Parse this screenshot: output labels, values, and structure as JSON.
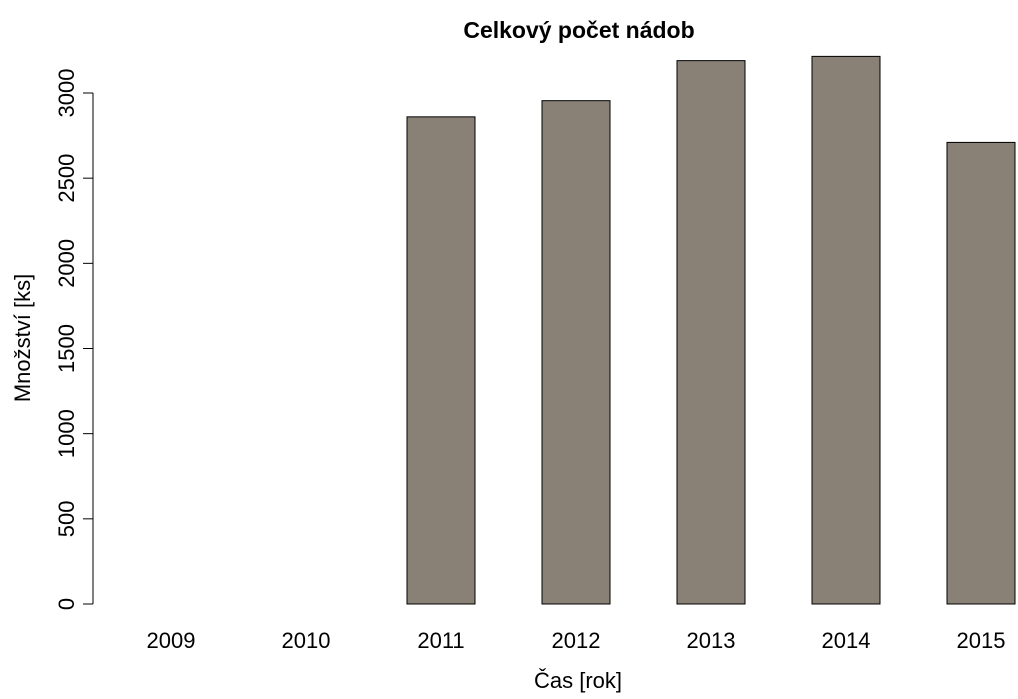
{
  "chart_data": {
    "type": "bar",
    "title": "Celkový počet nádob",
    "xlabel": "Čas [rok]",
    "ylabel": "Množství [ks]",
    "categories": [
      "2009",
      "2010",
      "2011",
      "2012",
      "2013",
      "2014",
      "2015"
    ],
    "values": [
      0,
      0,
      2860,
      2955,
      3190,
      3215,
      2710
    ],
    "ylim": [
      0,
      3220
    ],
    "yticks": [
      0,
      500,
      1000,
      1500,
      2000,
      2500,
      3000
    ],
    "ytick_labels": [
      "0",
      "500",
      "1000",
      "1500",
      "2000",
      "2500",
      "3000"
    ],
    "grid": false,
    "legend": "none",
    "colors": {
      "bar_fill": "#898176",
      "bar_stroke": "#000000",
      "axis": "#000000",
      "background": "#ffffff"
    }
  }
}
